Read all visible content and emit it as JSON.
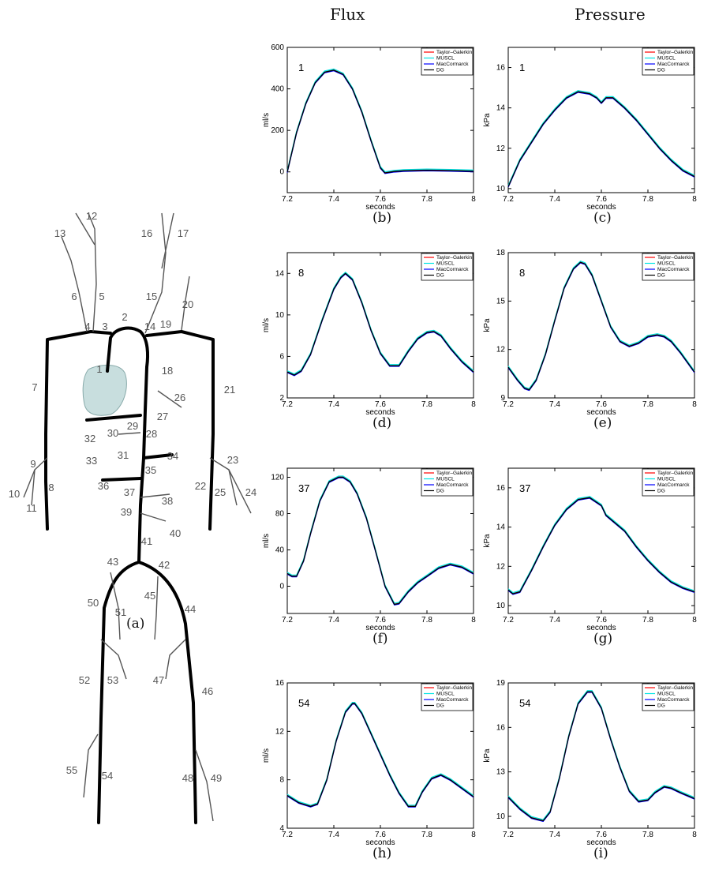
{
  "columns": {
    "flux": "Flux",
    "pressure": "Pressure"
  },
  "diagram": {
    "caption": "(a)",
    "segment_labels": [
      "1",
      "2",
      "3",
      "4",
      "5",
      "6",
      "7",
      "8",
      "9",
      "10",
      "11",
      "12",
      "13",
      "14",
      "15",
      "16",
      "17",
      "18",
      "19",
      "20",
      "21",
      "22",
      "23",
      "24",
      "25",
      "26",
      "27",
      "28",
      "29",
      "30",
      "31",
      "32",
      "33",
      "34",
      "35",
      "36",
      "37",
      "38",
      "39",
      "40",
      "41",
      "42",
      "43",
      "44",
      "45",
      "46",
      "47",
      "48",
      "49",
      "50",
      "51",
      "52",
      "53",
      "54",
      "55"
    ],
    "heart_color": "#c8dede"
  },
  "legend_entries": [
    {
      "name": "Taylor–Galerkin",
      "color": "#ff0000"
    },
    {
      "name": "MUSCL",
      "color": "#00e5e5"
    },
    {
      "name": "MacCormarck",
      "color": "#0000ff"
    },
    {
      "name": "DG",
      "color": "#000000"
    }
  ],
  "chart_data": [
    {
      "type": "line",
      "caption": "(b)",
      "panel_label": "1",
      "xlabel": "seconds",
      "ylabel": "ml/s",
      "xlim": [
        7.2,
        8
      ],
      "ylim": [
        -100,
        600
      ],
      "xticks": [
        "7.2",
        "7.4",
        "7.6",
        "7.8",
        "8"
      ],
      "yticks": [
        0,
        200,
        400,
        600
      ],
      "x": [
        7.2,
        7.24,
        7.28,
        7.32,
        7.36,
        7.4,
        7.44,
        7.48,
        7.52,
        7.56,
        7.6,
        7.62,
        7.66,
        7.7,
        7.8,
        7.9,
        8.0
      ],
      "y": [
        0,
        190,
        330,
        430,
        480,
        490,
        470,
        400,
        290,
        150,
        20,
        -5,
        2,
        5,
        8,
        6,
        3
      ]
    },
    {
      "type": "line",
      "caption": "(c)",
      "panel_label": "1",
      "xlabel": "seconds",
      "ylabel": "kPa",
      "xlim": [
        7.2,
        8
      ],
      "ylim": [
        9.8,
        17
      ],
      "xticks": [
        "7.2",
        "7.4",
        "7.6",
        "7.8",
        "8"
      ],
      "yticks": [
        10,
        12,
        14,
        16
      ],
      "x": [
        7.2,
        7.25,
        7.3,
        7.35,
        7.4,
        7.45,
        7.5,
        7.55,
        7.58,
        7.6,
        7.62,
        7.65,
        7.7,
        7.75,
        7.8,
        7.85,
        7.9,
        7.95,
        8.0
      ],
      "y": [
        10.1,
        11.4,
        12.3,
        13.2,
        13.9,
        14.5,
        14.8,
        14.7,
        14.5,
        14.25,
        14.5,
        14.5,
        14.0,
        13.4,
        12.7,
        12.0,
        11.4,
        10.9,
        10.6
      ]
    },
    {
      "type": "line",
      "caption": "(d)",
      "panel_label": "8",
      "xlabel": "seconds",
      "ylabel": "ml/s",
      "xlim": [
        7.2,
        8
      ],
      "ylim": [
        2,
        16
      ],
      "xticks": [
        "7.2",
        "7.4",
        "7.6",
        "7.8",
        "8"
      ],
      "yticks": [
        2,
        6,
        10,
        14
      ],
      "x": [
        7.2,
        7.23,
        7.26,
        7.3,
        7.35,
        7.4,
        7.43,
        7.45,
        7.48,
        7.52,
        7.56,
        7.6,
        7.64,
        7.68,
        7.72,
        7.76,
        7.8,
        7.83,
        7.86,
        7.9,
        7.95,
        8.0
      ],
      "y": [
        4.5,
        4.2,
        4.6,
        6.2,
        9.5,
        12.5,
        13.6,
        14.0,
        13.4,
        11.2,
        8.5,
        6.3,
        5.1,
        5.1,
        6.5,
        7.7,
        8.3,
        8.4,
        8.0,
        6.8,
        5.5,
        4.5
      ]
    },
    {
      "type": "line",
      "caption": "(e)",
      "panel_label": "8",
      "xlabel": "seconds",
      "ylabel": "kPa",
      "xlim": [
        7.2,
        8
      ],
      "ylim": [
        9,
        18
      ],
      "xticks": [
        "7.2",
        "7.4",
        "7.6",
        "7.8",
        "8"
      ],
      "yticks": [
        9,
        12,
        15,
        18
      ],
      "x": [
        7.2,
        7.24,
        7.27,
        7.29,
        7.32,
        7.36,
        7.4,
        7.44,
        7.48,
        7.51,
        7.53,
        7.56,
        7.6,
        7.64,
        7.68,
        7.72,
        7.76,
        7.8,
        7.84,
        7.87,
        7.9,
        7.94,
        8.0
      ],
      "y": [
        10.9,
        10.1,
        9.6,
        9.5,
        10.1,
        11.7,
        13.8,
        15.8,
        17.0,
        17.4,
        17.3,
        16.6,
        15.0,
        13.4,
        12.5,
        12.2,
        12.4,
        12.8,
        12.9,
        12.8,
        12.5,
        11.8,
        10.6
      ]
    },
    {
      "type": "line",
      "caption": "(f)",
      "panel_label": "37",
      "xlabel": "seconds",
      "ylabel": "ml/s",
      "xlim": [
        7.2,
        8
      ],
      "ylim": [
        -30,
        130
      ],
      "xticks": [
        "7.2",
        "7.4",
        "7.6",
        "7.8",
        "8"
      ],
      "yticks": [
        0,
        40,
        80,
        120
      ],
      "x": [
        7.2,
        7.22,
        7.24,
        7.27,
        7.3,
        7.34,
        7.38,
        7.42,
        7.44,
        7.47,
        7.5,
        7.54,
        7.58,
        7.62,
        7.66,
        7.68,
        7.72,
        7.76,
        7.8,
        7.85,
        7.9,
        7.95,
        8.0
      ],
      "y": [
        14,
        11,
        11,
        28,
        58,
        94,
        115,
        120,
        120,
        115,
        102,
        75,
        38,
        0,
        -20,
        -19,
        -6,
        4,
        11,
        20,
        24,
        21,
        14
      ]
    },
    {
      "type": "line",
      "caption": "(g)",
      "panel_label": "37",
      "xlabel": "seconds",
      "ylabel": "kPa",
      "xlim": [
        7.2,
        8
      ],
      "ylim": [
        9.6,
        17
      ],
      "xticks": [
        "7.2",
        "7.4",
        "7.6",
        "7.8",
        "8"
      ],
      "yticks": [
        10,
        12,
        14,
        16
      ],
      "x": [
        7.2,
        7.22,
        7.25,
        7.3,
        7.35,
        7.4,
        7.45,
        7.5,
        7.55,
        7.6,
        7.62,
        7.65,
        7.7,
        7.75,
        7.8,
        7.85,
        7.9,
        7.95,
        8.0
      ],
      "y": [
        10.8,
        10.6,
        10.7,
        11.8,
        13.0,
        14.1,
        14.9,
        15.4,
        15.5,
        15.1,
        14.6,
        14.3,
        13.8,
        13.0,
        12.3,
        11.7,
        11.2,
        10.9,
        10.7
      ]
    },
    {
      "type": "line",
      "caption": "(h)",
      "panel_label": "54",
      "xlabel": "seconds",
      "ylabel": "ml/s",
      "xlim": [
        7.2,
        8
      ],
      "ylim": [
        4,
        16
      ],
      "xticks": [
        "7.2",
        "7.4",
        "7.6",
        "7.8",
        "8"
      ],
      "yticks": [
        4,
        8,
        12,
        16
      ],
      "x": [
        7.2,
        7.25,
        7.3,
        7.33,
        7.37,
        7.41,
        7.45,
        7.48,
        7.49,
        7.52,
        7.56,
        7.6,
        7.64,
        7.68,
        7.72,
        7.75,
        7.78,
        7.82,
        7.86,
        7.9,
        7.95,
        8.0
      ],
      "y": [
        6.7,
        6.1,
        5.8,
        6.0,
        8.0,
        11.2,
        13.6,
        14.3,
        14.3,
        13.5,
        11.8,
        10.1,
        8.4,
        6.9,
        5.8,
        5.8,
        7.0,
        8.1,
        8.4,
        8.0,
        7.3,
        6.6
      ]
    },
    {
      "type": "line",
      "caption": "(i)",
      "panel_label": "54",
      "xlabel": "seconds",
      "ylabel": "kPa",
      "xlim": [
        7.2,
        8
      ],
      "ylim": [
        9.2,
        19
      ],
      "xticks": [
        "7.2",
        "7.4",
        "7.6",
        "7.8",
        "8"
      ],
      "yticks": [
        10,
        13,
        16,
        19
      ],
      "x": [
        7.2,
        7.25,
        7.3,
        7.35,
        7.38,
        7.42,
        7.46,
        7.5,
        7.54,
        7.56,
        7.6,
        7.64,
        7.68,
        7.72,
        7.76,
        7.8,
        7.83,
        7.87,
        7.9,
        7.94,
        8.0
      ],
      "y": [
        11.3,
        10.5,
        9.9,
        9.7,
        10.3,
        12.6,
        15.4,
        17.6,
        18.4,
        18.4,
        17.3,
        15.2,
        13.3,
        11.7,
        11.0,
        11.1,
        11.6,
        12.0,
        11.9,
        11.6,
        11.2
      ]
    }
  ]
}
